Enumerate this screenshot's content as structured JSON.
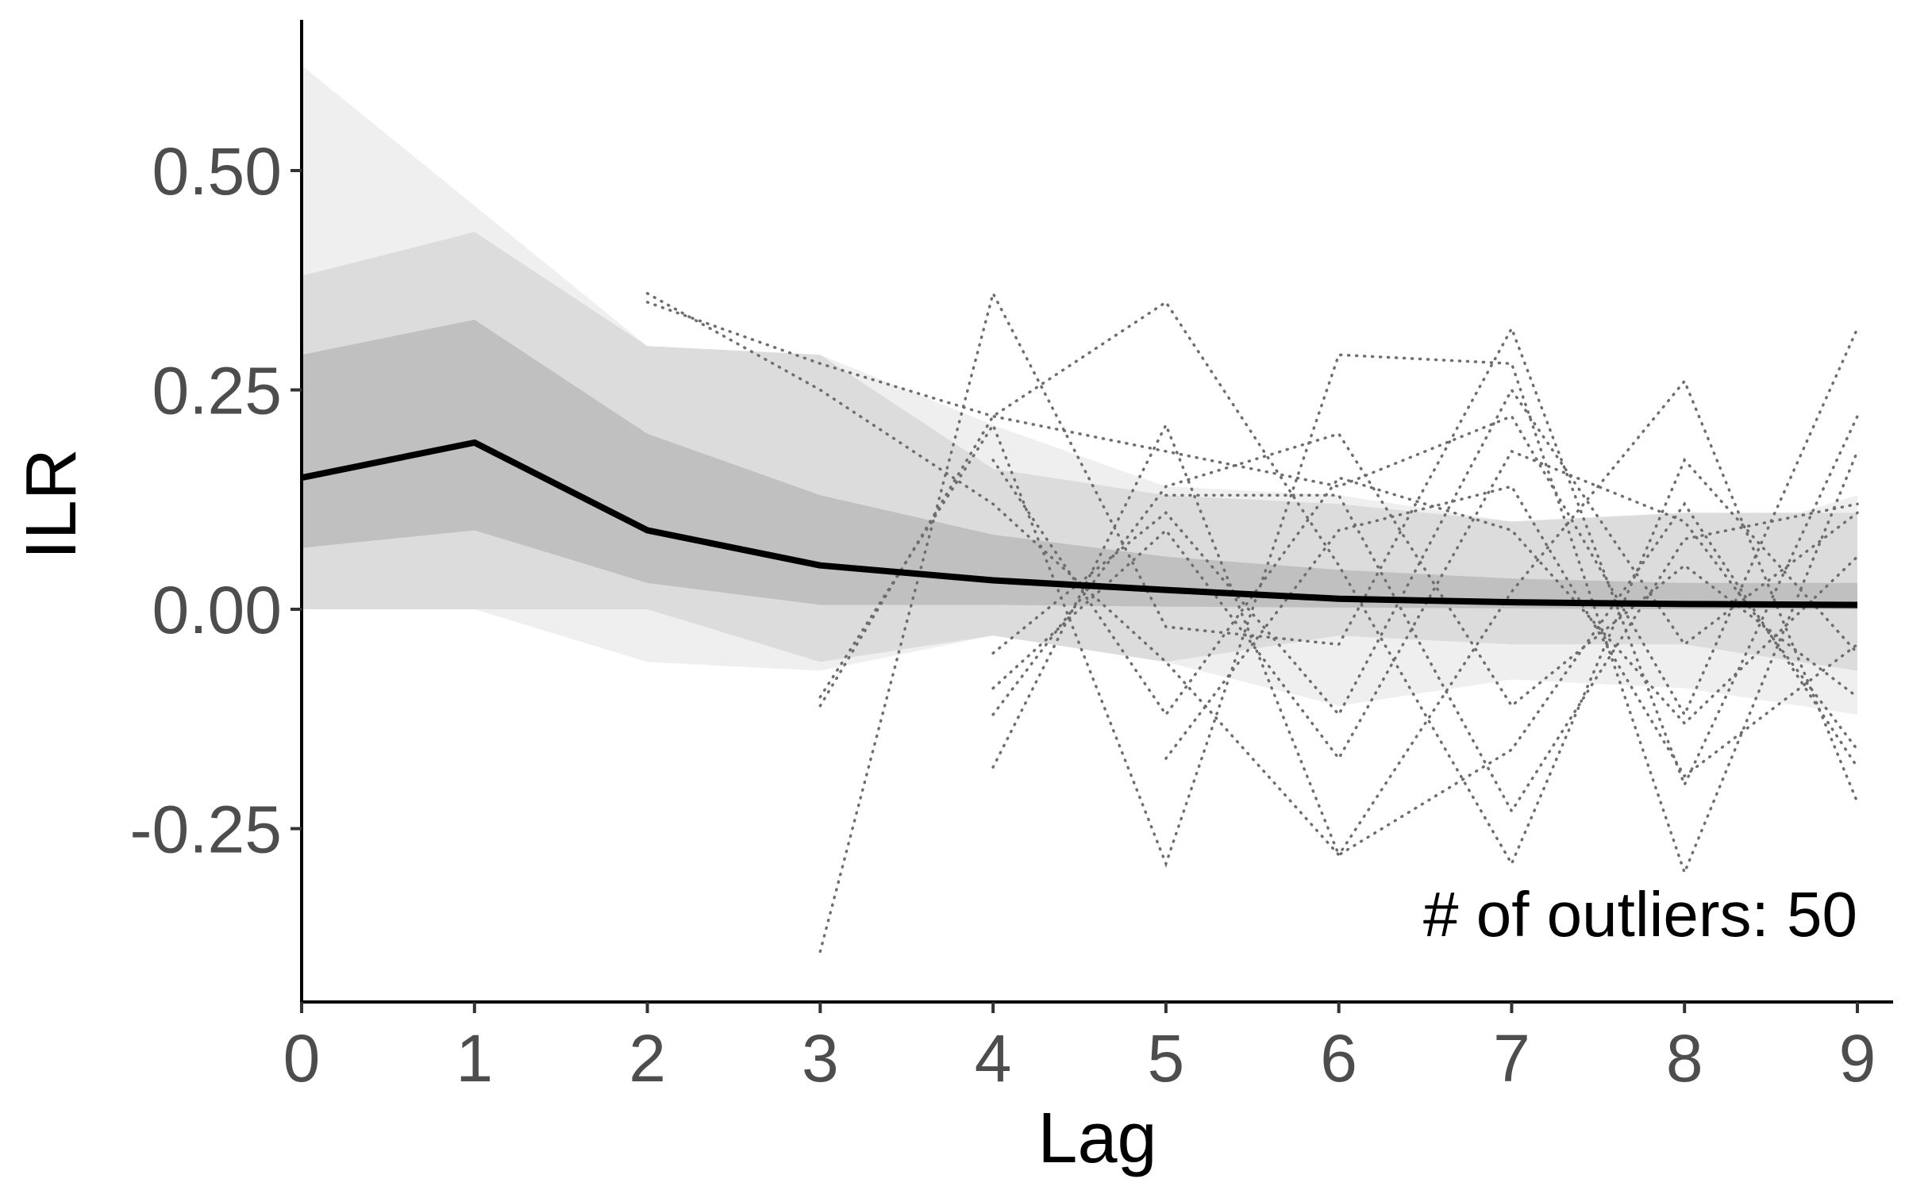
{
  "chart_data": {
    "type": "line",
    "xlabel": "Lag",
    "ylabel": "ILR",
    "xlim": [
      0,
      9
    ],
    "ylim": [
      -0.44,
      0.68
    ],
    "x_ticks": [
      0,
      1,
      2,
      3,
      4,
      5,
      6,
      7,
      8,
      9
    ],
    "y_ticks": [
      -0.25,
      0.0,
      0.25,
      0.5
    ],
    "y_tick_labels": [
      "-0.25",
      "0.00",
      "0.25",
      "0.50"
    ],
    "grid": false,
    "annotation": "# of outliers: 50",
    "x": [
      0,
      1,
      2,
      3,
      4,
      5,
      6,
      7,
      8,
      9
    ],
    "series": [
      {
        "role": "median",
        "color": "#000000",
        "values": [
          0.15,
          0.19,
          0.09,
          0.05,
          0.033,
          0.022,
          0.012,
          0.008,
          0.006,
          0.005
        ]
      }
    ],
    "bands": [
      {
        "role": "outer",
        "color": "#efefef",
        "lower": [
          0.0,
          0.0,
          -0.06,
          -0.07,
          -0.03,
          -0.06,
          -0.11,
          -0.08,
          -0.09,
          -0.12
        ],
        "upper": [
          0.62,
          0.46,
          0.3,
          0.29,
          0.21,
          0.14,
          0.13,
          0.1,
          0.07,
          0.13
        ]
      },
      {
        "role": "middle",
        "color": "#dcdcdc",
        "lower": [
          0.0,
          0.0,
          0.0,
          -0.06,
          -0.03,
          -0.06,
          -0.03,
          -0.04,
          -0.04,
          -0.07
        ],
        "upper": [
          0.38,
          0.43,
          0.3,
          0.29,
          0.16,
          0.13,
          0.12,
          0.1,
          0.11,
          0.11
        ]
      },
      {
        "role": "inner",
        "color": "#c0c0c0",
        "lower": [
          0.07,
          0.09,
          0.03,
          0.005,
          0.005,
          0.003,
          0.002,
          0.001,
          0.0,
          0.0
        ],
        "upper": [
          0.29,
          0.33,
          0.2,
          0.13,
          0.085,
          0.06,
          0.045,
          0.035,
          0.03,
          0.03
        ]
      }
    ],
    "outlier_lines": {
      "color": "#6e6e6e",
      "lines": [
        [
          null,
          null,
          0.36,
          0.25,
          0.12,
          -0.06,
          -0.28,
          0.02,
          0.26,
          -0.22
        ],
        [
          null,
          null,
          0.35,
          0.28,
          0.22,
          0.18,
          0.14,
          0.22,
          -0.12,
          0.32
        ],
        [
          null,
          null,
          null,
          -0.39,
          0.36,
          -0.02,
          -0.04,
          0.32,
          -0.2,
          0.22
        ],
        [
          null,
          null,
          null,
          -0.11,
          0.22,
          0.35,
          0.05,
          -0.29,
          0.17,
          -0.05
        ],
        [
          null,
          null,
          null,
          -0.1,
          0.21,
          -0.29,
          0.29,
          0.28,
          -0.3,
          0.18
        ],
        [
          null,
          null,
          null,
          null,
          -0.18,
          0.21,
          -0.28,
          -0.16,
          0.12,
          -0.18
        ],
        [
          null,
          null,
          null,
          null,
          -0.05,
          0.11,
          -0.12,
          0.25,
          -0.04,
          0.11
        ],
        [
          null,
          null,
          null,
          null,
          -0.12,
          0.14,
          0.2,
          -0.11,
          0.05,
          -0.1
        ],
        [
          null,
          null,
          null,
          null,
          0.17,
          -0.12,
          0.15,
          0.09,
          -0.13,
          0.06
        ],
        [
          null,
          null,
          null,
          null,
          -0.09,
          0.09,
          -0.17,
          0.18,
          0.1,
          -0.16
        ],
        [
          null,
          null,
          null,
          null,
          null,
          0.13,
          0.13,
          -0.23,
          0.08,
          0.12
        ],
        [
          null,
          null,
          null,
          null,
          null,
          -0.17,
          0.09,
          0.14,
          -0.19,
          -0.04
        ]
      ]
    }
  }
}
